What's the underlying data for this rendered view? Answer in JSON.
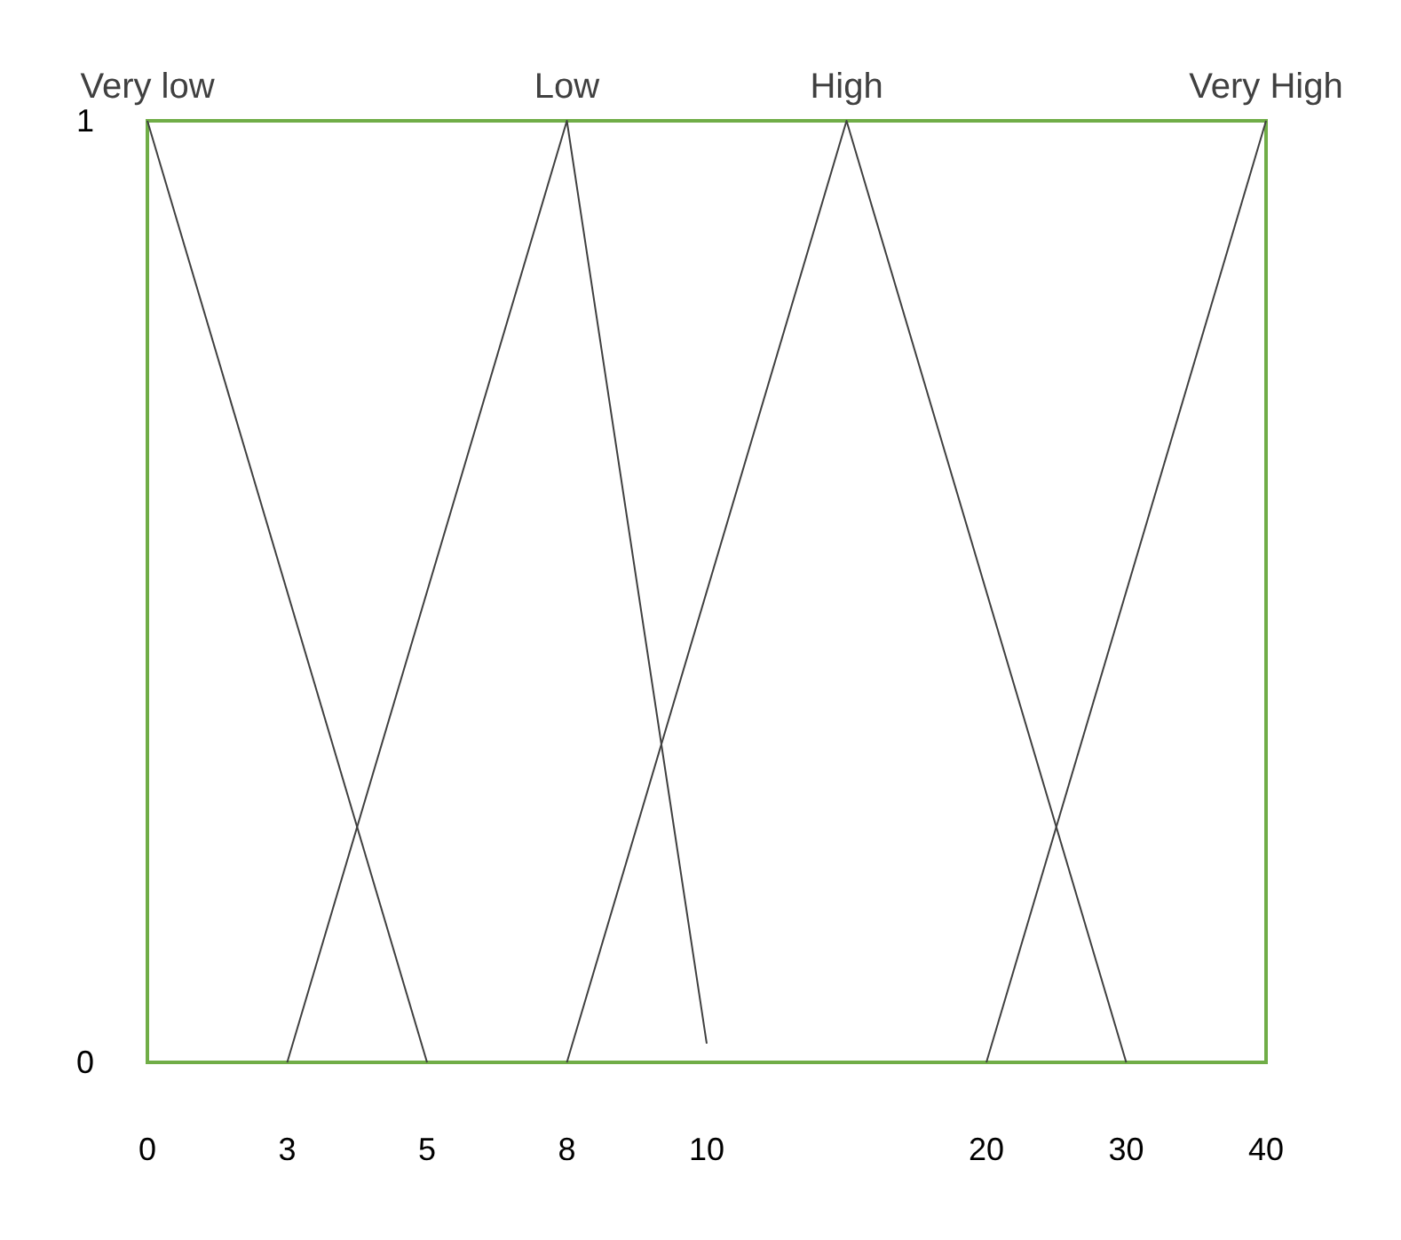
{
  "chart_data": {
    "type": "line",
    "categories": [
      "0",
      "3",
      "5",
      "8",
      "10",
      null,
      "20",
      "30",
      "40"
    ],
    "series": [
      {
        "name": "Very low",
        "color": "#404040",
        "values": [
          1,
          null,
          0,
          null,
          null,
          null,
          null,
          null,
          null
        ]
      },
      {
        "name": "Low",
        "color": "#404040",
        "values": [
          null,
          0,
          null,
          1,
          0.02,
          null,
          null,
          null,
          null
        ]
      },
      {
        "name": "High",
        "color": "#404040",
        "values": [
          null,
          null,
          null,
          0,
          null,
          1,
          null,
          0,
          null
        ]
      },
      {
        "name": "Very High",
        "color": "#404040",
        "values": [
          null,
          null,
          null,
          null,
          null,
          null,
          0,
          null,
          1
        ]
      }
    ],
    "ylim": [
      0,
      1
    ],
    "yticks": [
      0,
      1
    ],
    "grid": false,
    "legend": false,
    "marker": "none",
    "line_style": "solid"
  }
}
